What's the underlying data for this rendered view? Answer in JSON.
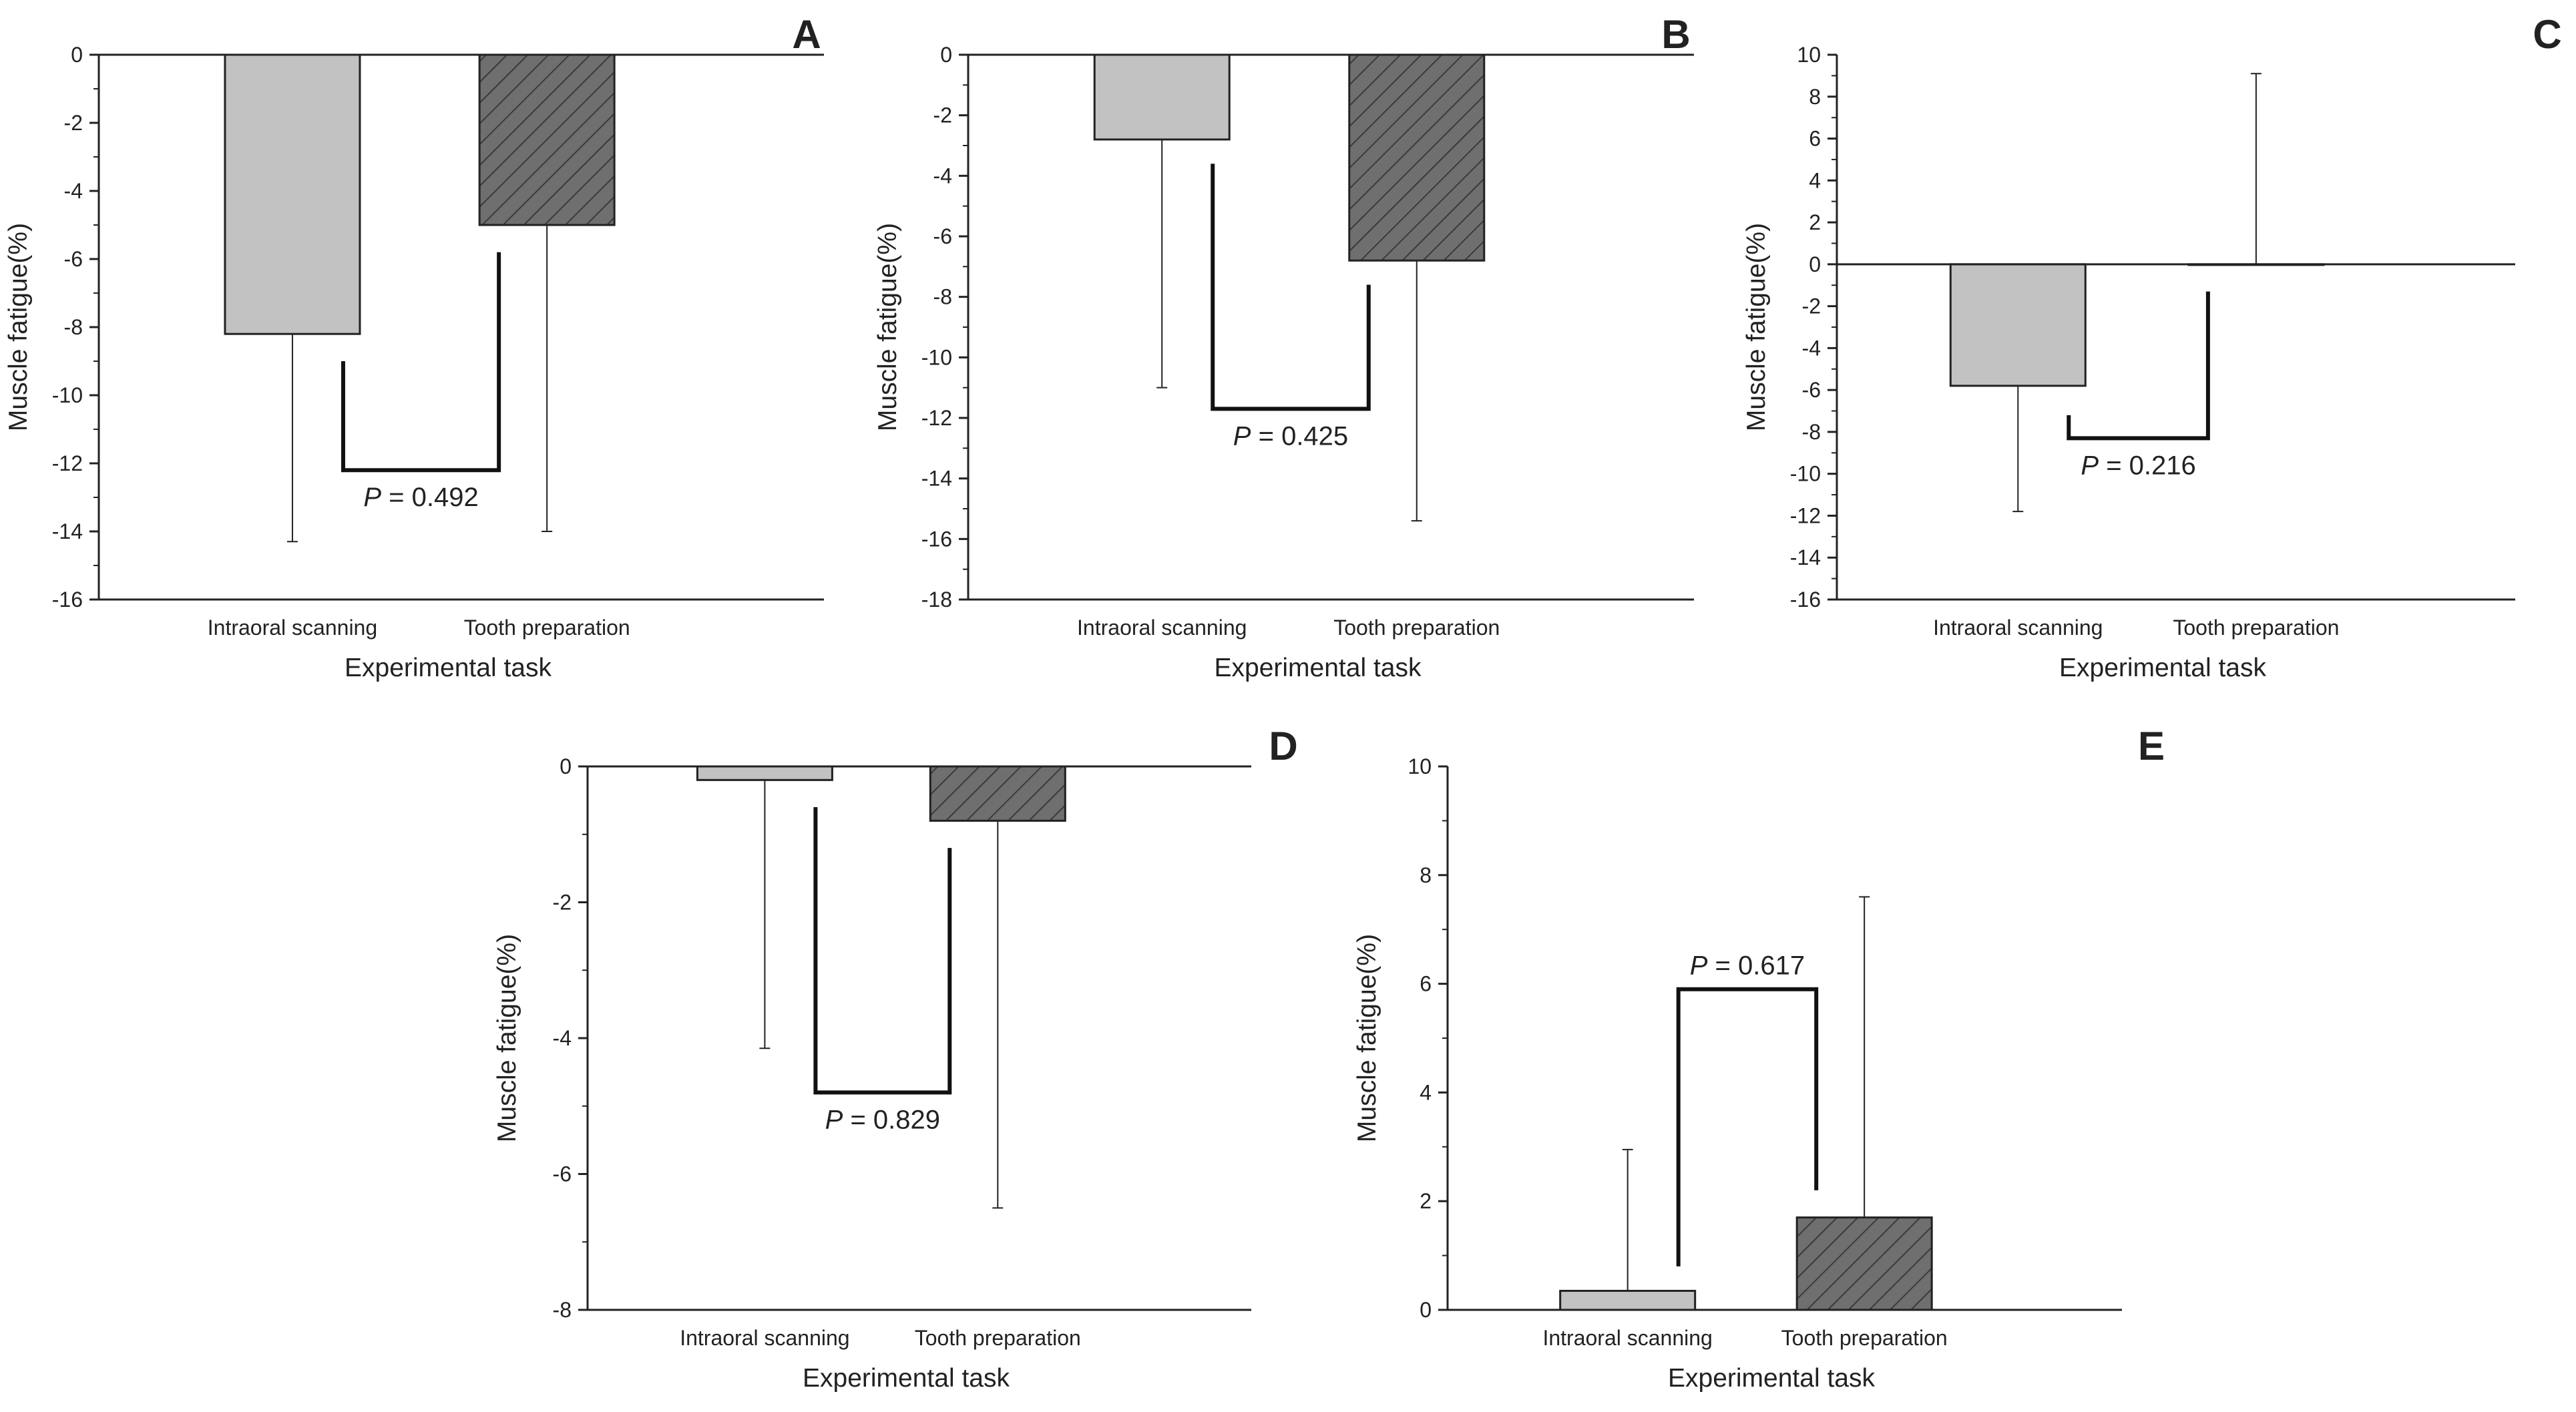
{
  "chart_data": [
    {
      "panel": "A",
      "type": "bar",
      "categories": [
        "Intraoral scanning",
        "Tooth preparation"
      ],
      "values": [
        -8.2,
        -5.0
      ],
      "error": [
        6.1,
        9.0
      ],
      "ylim": [
        -16,
        0
      ],
      "yticks": [
        0,
        -2,
        -4,
        -6,
        -8,
        -10,
        -12,
        -14,
        -16
      ],
      "ytick_labels": [
        "0",
        "-2",
        "-4",
        "-6",
        "-8",
        "-10",
        "-12",
        "-14",
        "-16"
      ],
      "xlabel": "Experimental task",
      "ylabel": "Muscle fatigue(%)",
      "p_italic": "P",
      "p_value": " = 0.492",
      "bracket": {
        "legs": [
          -9.0,
          -5.8
        ],
        "bar": -12.2
      }
    },
    {
      "panel": "B",
      "type": "bar",
      "categories": [
        "Intraoral scanning",
        "Tooth preparation"
      ],
      "values": [
        -2.8,
        -6.8
      ],
      "error": [
        8.2,
        8.6
      ],
      "ylim": [
        -18,
        0
      ],
      "yticks": [
        0,
        -2,
        -4,
        -6,
        -8,
        -10,
        -12,
        -14,
        -16,
        -18
      ],
      "ytick_labels": [
        "0",
        "-2",
        "-4",
        "-6",
        "-8",
        "-10",
        "-12",
        "-14",
        "-16",
        "-18"
      ],
      "xlabel": "Experimental task",
      "ylabel": "Muscle fatigue(%)",
      "p_italic": "P",
      "p_value": " = 0.425",
      "bracket": {
        "legs": [
          -3.6,
          -7.6
        ],
        "bar": -11.7
      }
    },
    {
      "panel": "C",
      "type": "bar",
      "categories": [
        "Intraoral scanning",
        "Tooth preparation"
      ],
      "values": [
        -5.8,
        0.0
      ],
      "error": [
        6.0,
        9.1
      ],
      "ylim": [
        -16,
        10
      ],
      "yticks": [
        10,
        8,
        6,
        4,
        2,
        0,
        -2,
        -4,
        -6,
        -8,
        -10,
        -12,
        -14,
        -16
      ],
      "ytick_labels": [
        "10",
        "8",
        "6",
        "4",
        "2",
        "0",
        "-2",
        "-4",
        "-6",
        "-8",
        "-10",
        "-12",
        "-14",
        "-16"
      ],
      "xlabel": "Experimental task",
      "ylabel": "Muscle fatigue(%)",
      "p_italic": "P",
      "p_value": " = 0.216",
      "bracket": {
        "legs": [
          -7.2,
          -1.3
        ],
        "bar": -8.3
      }
    },
    {
      "panel": "D",
      "type": "bar",
      "categories": [
        "Intraoral scanning",
        "Tooth preparation"
      ],
      "values": [
        -0.2,
        -0.8
      ],
      "error": [
        3.95,
        5.7
      ],
      "ylim": [
        -8,
        0
      ],
      "yticks": [
        0,
        -2,
        -4,
        -6,
        -8
      ],
      "ytick_labels": [
        "0",
        "-2",
        "-4",
        "-6",
        "-8"
      ],
      "xlabel": "Experimental task",
      "ylabel": "Muscle fatigue(%)",
      "p_italic": "P",
      "p_value": " = 0.829",
      "bracket": {
        "legs": [
          -0.6,
          -1.2
        ],
        "bar": -4.8
      }
    },
    {
      "panel": "E",
      "type": "bar",
      "categories": [
        "Intraoral scanning",
        "Tooth preparation"
      ],
      "values": [
        0.35,
        1.7
      ],
      "error": [
        2.6,
        5.9
      ],
      "ylim": [
        0,
        10
      ],
      "yticks": [
        0,
        2,
        4,
        6,
        8,
        10
      ],
      "ytick_labels": [
        "0",
        "2",
        "4",
        "6",
        "8",
        "10"
      ],
      "xlabel": "Experimental task",
      "ylabel": "Muscle fatigue(%)",
      "p_italic": "P",
      "p_value": " = 0.617",
      "bracket": {
        "legs": [
          0.8,
          2.2
        ],
        "bar": 5.9
      }
    }
  ],
  "colors": {
    "bar_intraoral": "#c2c2c2",
    "bar_tooth": "#6f6f6f",
    "hatch": "#3a3a3a",
    "axis": "#222222"
  }
}
